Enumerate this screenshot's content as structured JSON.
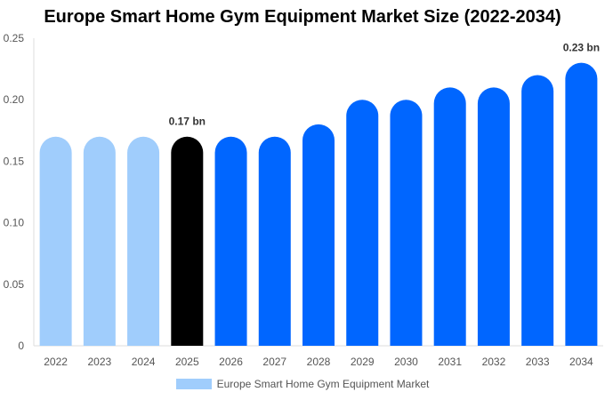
{
  "chart_data": {
    "type": "bar",
    "title": "Europe Smart Home Gym Equipment Market Size (2022-2034)",
    "categories": [
      "2022",
      "2023",
      "2024",
      "2025",
      "2026",
      "2027",
      "2028",
      "2029",
      "2030",
      "2031",
      "2032",
      "2033",
      "2034"
    ],
    "series": [
      {
        "name": "Europe Smart Home Gym Equipment Market",
        "values": [
          0.17,
          0.17,
          0.17,
          0.17,
          0.17,
          0.17,
          0.18,
          0.2,
          0.2,
          0.21,
          0.21,
          0.22,
          0.23
        ]
      }
    ],
    "bar_colors": [
      "#a0cdfc",
      "#a0cdfc",
      "#a0cdfc",
      "#000000",
      "#0066ff",
      "#0066ff",
      "#0066ff",
      "#0066ff",
      "#0066ff",
      "#0066ff",
      "#0066ff",
      "#0066ff",
      "#0066ff"
    ],
    "legend_color": "#a0cdfc",
    "data_labels": {
      "3": "0.17 bn",
      "12": "0.23 bn"
    },
    "yticks": [
      "0",
      "0.05",
      "0.10",
      "0.15",
      "0.20",
      "0.25"
    ],
    "ylim": [
      0,
      0.25
    ],
    "xlabel": "",
    "ylabel": "",
    "grid": false,
    "legend_position": "bottom"
  }
}
